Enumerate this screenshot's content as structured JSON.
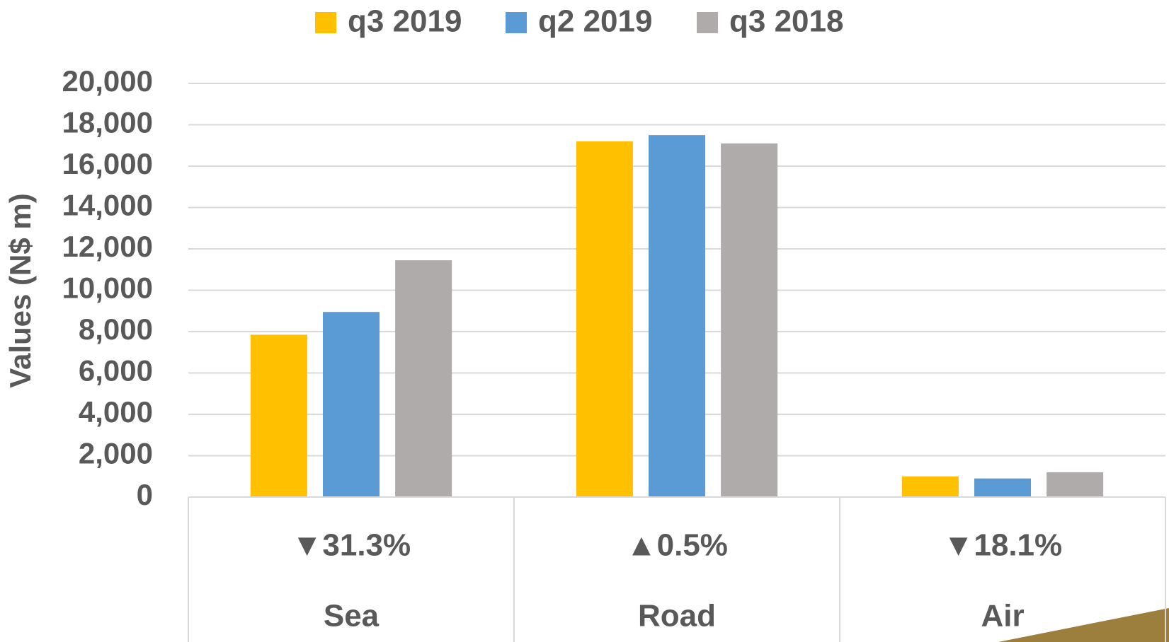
{
  "chart_data": {
    "type": "bar",
    "ylabel": "Values (N$ m)",
    "categories": [
      "Sea",
      "Road",
      "Air"
    ],
    "category_annotations": [
      "▼31.3%",
      "▲0.5%",
      "▼18.1%"
    ],
    "series": [
      {
        "name": "q3 2019",
        "color": "#ffc000",
        "values": [
          7850,
          17200,
          1000
        ]
      },
      {
        "name": "q2 2019",
        "color": "#5b9bd5",
        "values": [
          8950,
          17500,
          900
        ]
      },
      {
        "name": "q3 2018",
        "color": "#afabab",
        "values": [
          11450,
          17100,
          1200
        ]
      }
    ],
    "ylim": [
      0,
      20000
    ],
    "yticks": [
      0,
      {
        "value": 2000,
        "label": "2,000"
      },
      {
        "value": 4000,
        "label": "4,000"
      },
      {
        "value": 6000,
        "label": "6,000"
      },
      {
        "value": 8000,
        "label": "8,000"
      },
      {
        "value": 10000,
        "label": "10,000"
      },
      {
        "value": 12000,
        "label": "12,000"
      },
      {
        "value": 14000,
        "label": "14,000"
      },
      {
        "value": 16000,
        "label": "16,000"
      },
      {
        "value": 18000,
        "label": "18,000"
      },
      {
        "value": 20000,
        "label": "20,000"
      }
    ],
    "grid": true,
    "legend": "top"
  }
}
